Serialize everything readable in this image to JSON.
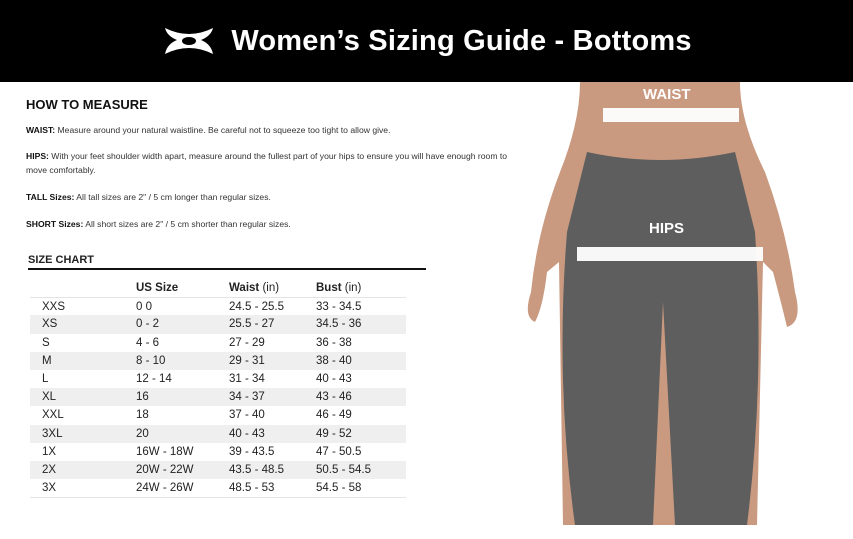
{
  "header": {
    "title": "Women’s Sizing Guide - Bottoms",
    "logo": "under-armour-logo"
  },
  "how_to_measure": {
    "title": "HOW TO MEASURE",
    "items": [
      {
        "label": "WAIST:",
        "text": " Measure around your natural waistline. Be careful not to squeeze too tight to allow give."
      },
      {
        "label": "HIPS:",
        "text": " With your feet shoulder width apart, measure around the fullest part of your hips to ensure you will have enough room to move comfortably."
      },
      {
        "label": "TALL Sizes:",
        "text": " All tall sizes are 2\" / 5 cm longer than regular sizes."
      },
      {
        "label": "SHORT Sizes:",
        "text": " All short sizes are 2\" / 5 cm shorter than regular sizes."
      }
    ]
  },
  "size_chart": {
    "title": "SIZE CHART",
    "headers": [
      "",
      "US Size",
      "Waist",
      "Bust"
    ],
    "unit": "(in)",
    "rows": [
      [
        "XXS",
        "0 0",
        "24.5 - 25.5",
        "33 - 34.5"
      ],
      [
        "XS",
        "0 - 2",
        "25.5 - 27",
        "34.5 - 36"
      ],
      [
        "S",
        "4 - 6",
        "27 - 29",
        "36 - 38"
      ],
      [
        "M",
        "8 - 10",
        "29 - 31",
        "38 - 40"
      ],
      [
        "L",
        "12 - 14",
        "31 - 34",
        "40 - 43"
      ],
      [
        "XL",
        "16",
        "34 - 37",
        "43 - 46"
      ],
      [
        "XXL",
        "18",
        "37 - 40",
        "46 - 49"
      ],
      [
        "3XL",
        "20",
        "40 - 43",
        "49 - 52"
      ],
      [
        "1X",
        "16W - 18W",
        "39 - 43.5",
        "47 - 50.5"
      ],
      [
        "2X",
        "20W - 22W",
        "43.5 - 48.5",
        "50.5 - 54.5"
      ],
      [
        "3X",
        "24W - 26W",
        "48.5 - 53",
        "54.5 - 58"
      ]
    ]
  },
  "photo": {
    "waist_label": "WAIST",
    "hips_label": "HIPS",
    "colors": {
      "skin": "#c99a80",
      "leggings": "#5e5e5e"
    }
  }
}
